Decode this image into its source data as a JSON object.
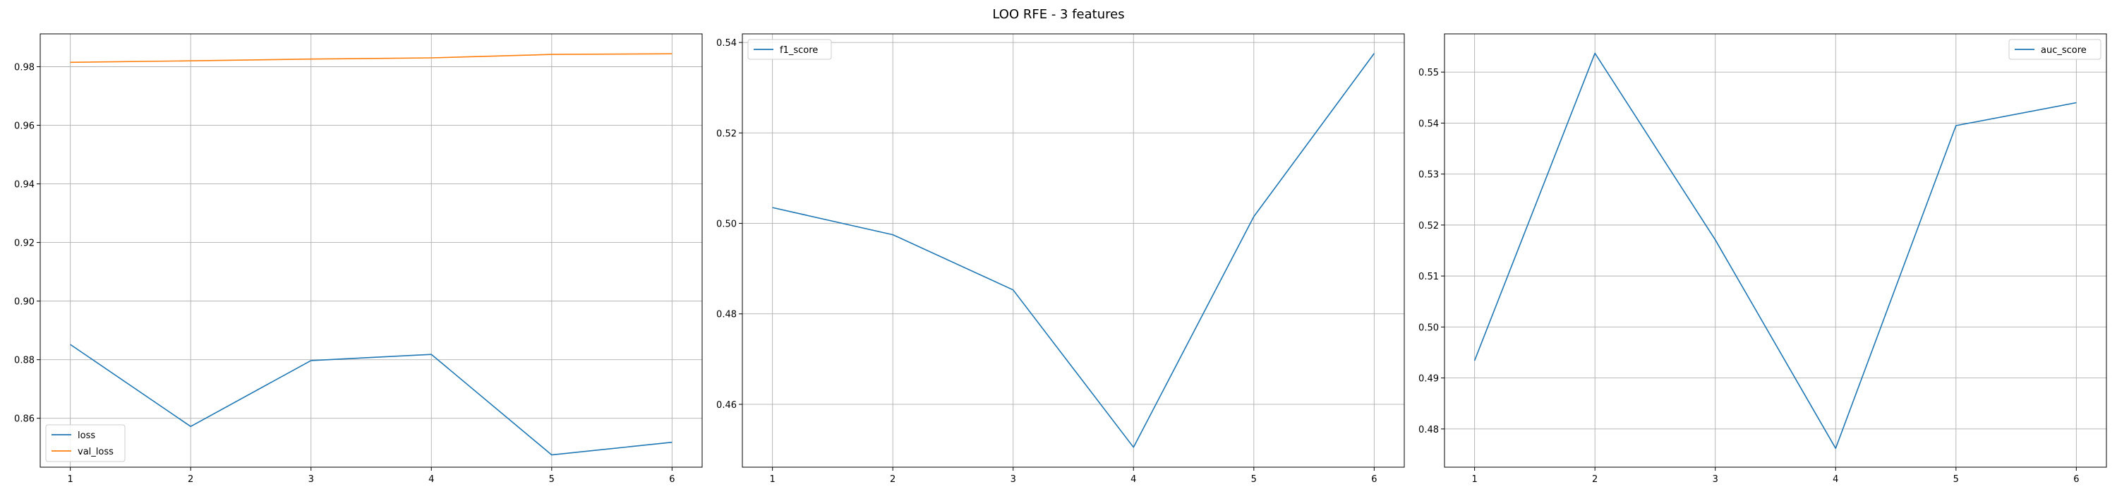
{
  "figure": {
    "title": "LOO RFE - 3 features"
  },
  "chart_data": [
    {
      "type": "line",
      "x": [
        1,
        2,
        3,
        4,
        5,
        6
      ],
      "series": [
        {
          "name": "loss",
          "color": "#1f77b4",
          "values": [
            0.8852,
            0.8572,
            0.8797,
            0.8818,
            0.8475,
            0.8518
          ]
        },
        {
          "name": "val_loss",
          "color": "#ff7f0e",
          "values": [
            0.9815,
            0.982,
            0.9826,
            0.983,
            0.9842,
            0.9844
          ]
        }
      ],
      "xticks": [
        1,
        2,
        3,
        4,
        5,
        6
      ],
      "xtick_labels": [
        "1",
        "2",
        "3",
        "4",
        "5",
        "6"
      ],
      "yticks": [
        0.86,
        0.88,
        0.9,
        0.92,
        0.94,
        0.96,
        0.98
      ],
      "ytick_labels": [
        "0.86",
        "0.88",
        "0.90",
        "0.92",
        "0.94",
        "0.96",
        "0.98"
      ],
      "xlim": [
        0.75,
        6.25
      ],
      "ylim": [
        0.8433,
        0.9912
      ],
      "grid": true,
      "legend_loc": "lower-left"
    },
    {
      "type": "line",
      "x": [
        1,
        2,
        3,
        4,
        5,
        6
      ],
      "series": [
        {
          "name": "f1_score",
          "color": "#1f77b4",
          "values": [
            0.5035,
            0.4975,
            0.4853,
            0.4505,
            0.5015,
            0.5376
          ]
        }
      ],
      "xticks": [
        1,
        2,
        3,
        4,
        5,
        6
      ],
      "xtick_labels": [
        "1",
        "2",
        "3",
        "4",
        "5",
        "6"
      ],
      "yticks": [
        0.46,
        0.48,
        0.5,
        0.52,
        0.54
      ],
      "ytick_labels": [
        "0.46",
        "0.48",
        "0.50",
        "0.52",
        "0.54"
      ],
      "xlim": [
        0.75,
        6.25
      ],
      "ylim": [
        0.4461,
        0.5419
      ],
      "grid": true,
      "legend_loc": "upper-left"
    },
    {
      "type": "line",
      "x": [
        1,
        2,
        3,
        4,
        5,
        6
      ],
      "series": [
        {
          "name": "auc_score",
          "color": "#1f77b4",
          "values": [
            0.4934,
            0.5537,
            0.5171,
            0.4762,
            0.5395,
            0.544
          ]
        }
      ],
      "xticks": [
        1,
        2,
        3,
        4,
        5,
        6
      ],
      "xtick_labels": [
        "1",
        "2",
        "3",
        "4",
        "5",
        "6"
      ],
      "yticks": [
        0.48,
        0.49,
        0.5,
        0.51,
        0.52,
        0.53,
        0.54,
        0.55
      ],
      "ytick_labels": [
        "0.48",
        "0.49",
        "0.50",
        "0.51",
        "0.52",
        "0.53",
        "0.54",
        "0.55"
      ],
      "xlim": [
        0.75,
        6.25
      ],
      "ylim": [
        0.4725,
        0.5575
      ],
      "grid": true,
      "legend_loc": "upper-right"
    }
  ]
}
